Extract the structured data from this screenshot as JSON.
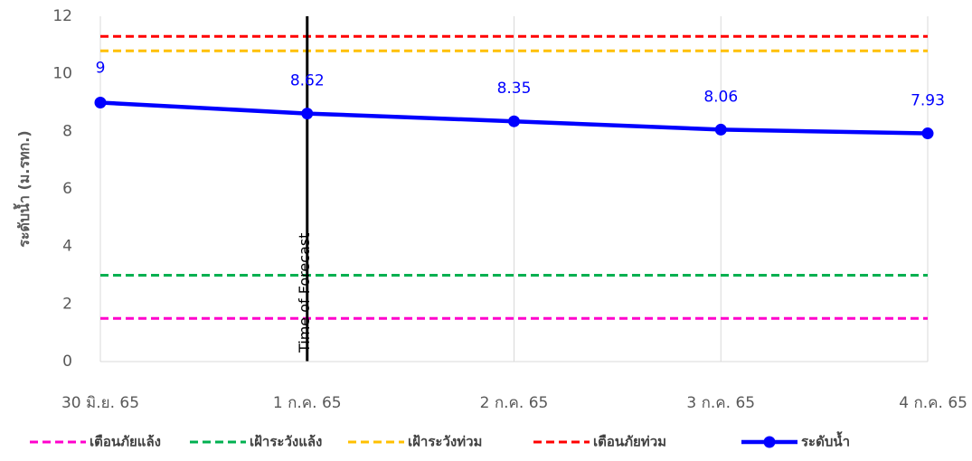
{
  "chart_data": {
    "type": "line",
    "ylabel": "ระดับน้ำ (ม.รทก.)",
    "ylim": [
      0,
      12
    ],
    "yticks": [
      0,
      2,
      4,
      6,
      8,
      10,
      12
    ],
    "categories": [
      "30 มิ.ย. 65",
      "1 ก.ค. 65",
      "2 ก.ค. 65",
      "3 ก.ค. 65",
      "4 ก.ค. 65"
    ],
    "grid": "vertical",
    "legend_position": "bottom",
    "series": [
      {
        "name": "ระดับน้ำ",
        "values": [
          9,
          8.62,
          8.35,
          8.06,
          7.93
        ],
        "color": "#0000FF",
        "style": "solid-markers",
        "data_labels": [
          "9",
          "8.62",
          "8.35",
          "8.06",
          "7.93"
        ]
      }
    ],
    "threshold_lines": [
      {
        "name": "เตือนภัยแล้ง",
        "value": 1.5,
        "color": "#FF00CC",
        "style": "dashed"
      },
      {
        "name": "เฝ้าระวังแล้ง",
        "value": 3.0,
        "color": "#00B050",
        "style": "dashed"
      },
      {
        "name": "เฝ้าระวังท่วม",
        "value": 10.8,
        "color": "#FFC000",
        "style": "dashed"
      },
      {
        "name": "เตือนภัยท่วม",
        "value": 11.3,
        "color": "#FF0000",
        "style": "dashed"
      }
    ],
    "annotations": [
      {
        "text": "Time of Forecast",
        "category": "1 ก.ค. 65",
        "color": "#000000"
      }
    ],
    "legend_order": [
      "เตือนภัยแล้ง",
      "เฝ้าระวังแล้ง",
      "เฝ้าระวังท่วม",
      "เตือนภัยท่วม",
      "ระดับน้ำ"
    ]
  }
}
